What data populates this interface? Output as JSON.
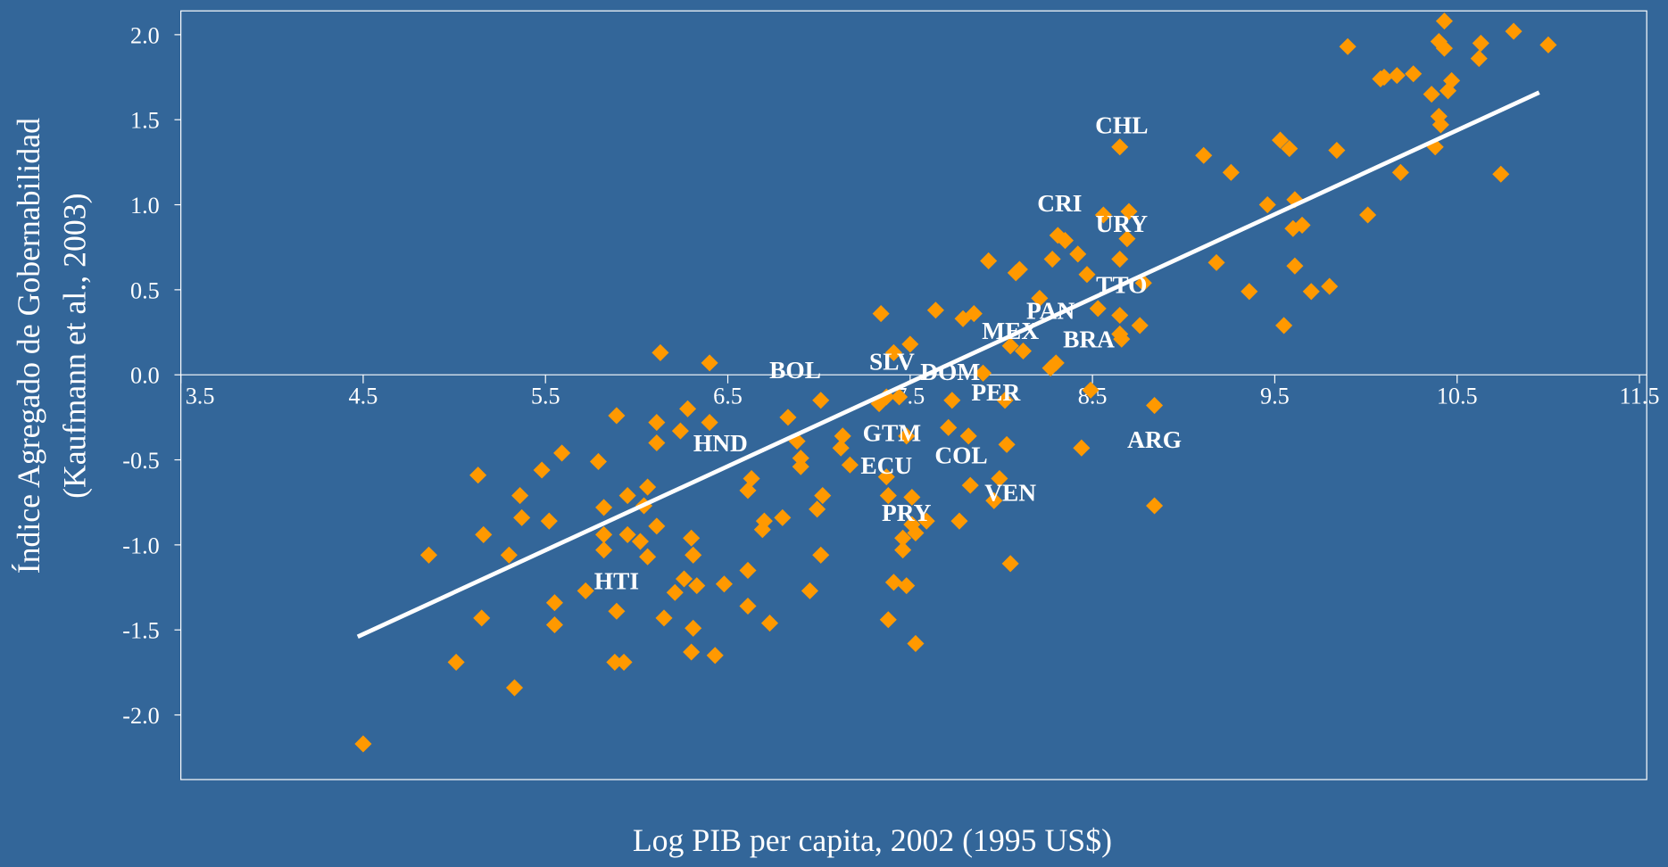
{
  "chart_data": {
    "type": "scatter",
    "xlabel": "Log PIB per capita, 2002 (1995 US$)",
    "ylabel": [
      "Índice Agregado de Gobernabilidad",
      "(Kaufmann et al., 2003)"
    ],
    "xlim": [
      3.5,
      11.54
    ],
    "ylim": [
      -2.38,
      2.14
    ],
    "xticks": [
      3.5,
      4.5,
      5.5,
      6.5,
      7.5,
      8.5,
      9.5,
      10.5,
      11.5
    ],
    "yticks": [
      {
        "value": 2,
        "label": "2.0"
      },
      1.5,
      {
        "value": 1,
        "label": "1.0"
      },
      0.5,
      {
        "value": 0,
        "label": "0.0"
      },
      -0.5,
      {
        "value": -1,
        "label": "-1.0"
      },
      -1.5,
      {
        "value": -2,
        "label": "-2.0"
      }
    ],
    "points": {
      "color": "#ff9900",
      "x": [
        4.5,
        4.86,
        5.01,
        5.13,
        5.15,
        5.16,
        5.3,
        5.33,
        5.36,
        5.37,
        5.48,
        5.52,
        5.55,
        5.55,
        5.59,
        5.72,
        5.79,
        5.82,
        5.82,
        5.82,
        5.89,
        5.89,
        5.88,
        5.93,
        5.95,
        5.95,
        6.02,
        6.04,
        6.06,
        6.06,
        6.11,
        6.11,
        6.11,
        6.13,
        6.15,
        6.21,
        6.24,
        6.26,
        6.28,
        6.3,
        6.31,
        6.31,
        6.3,
        6.33,
        6.4,
        6.4,
        6.43,
        6.48,
        6.61,
        6.63,
        6.61,
        6.61,
        6.69,
        6.7,
        6.73,
        6.8,
        6.83,
        6.88,
        6.9,
        6.9,
        6.95,
        6.99,
        7.01,
        7.02,
        7.01,
        7.12,
        7.13,
        7.17,
        7.34,
        7.33,
        7.37,
        7.37,
        7.38,
        7.38,
        7.41,
        7.41,
        7.44,
        7.46,
        7.46,
        7.48,
        7.48,
        7.5,
        7.51,
        7.51,
        7.53,
        7.53,
        7.59,
        7.64,
        7.71,
        7.73,
        7.77,
        7.79,
        7.82,
        7.85,
        7.83,
        7.9,
        7.93,
        7.96,
        7.99,
        8.02,
        8.03,
        8.05,
        8.05,
        8.08,
        8.1,
        8.12,
        8.21,
        8.27,
        8.28,
        8.3,
        8.31,
        8.35,
        8.42,
        8.44,
        8.47,
        8.49,
        8.53,
        8.56,
        8.65,
        8.65,
        8.65,
        8.65,
        8.66,
        8.69,
        8.7,
        8.76,
        8.78,
        8.84,
        8.84,
        9.11,
        9.18,
        9.26,
        9.36,
        9.46,
        9.53,
        9.55,
        9.58,
        9.6,
        9.61,
        9.61,
        9.65,
        9.7,
        9.8,
        9.84,
        9.9,
        10.01,
        10.08,
        10.1,
        10.17,
        10.19,
        10.26,
        10.36,
        10.38,
        10.4,
        10.4,
        10.41,
        10.43,
        10.45,
        10.47,
        10.43,
        10.62,
        10.63,
        10.74,
        10.81,
        11.0
      ],
      "values": [
        -2.17,
        -1.06,
        -1.69,
        -0.59,
        -1.43,
        -0.94,
        -1.06,
        -1.84,
        -0.71,
        -0.84,
        -0.56,
        -0.86,
        -1.34,
        -1.47,
        -0.46,
        -1.27,
        -0.51,
        -0.78,
        -0.94,
        -1.03,
        -0.24,
        -1.39,
        -1.69,
        -1.69,
        -0.71,
        -0.94,
        -0.98,
        -0.77,
        -0.66,
        -1.07,
        -0.28,
        -0.4,
        -0.89,
        0.13,
        -1.43,
        -1.28,
        -0.33,
        -1.2,
        -0.2,
        -0.96,
        -1.06,
        -1.49,
        -1.63,
        -1.24,
        0.07,
        -0.28,
        -1.65,
        -1.23,
        -0.68,
        -0.61,
        -1.15,
        -1.36,
        -0.91,
        -0.86,
        -1.46,
        -0.84,
        -0.25,
        -0.39,
        -0.49,
        -0.54,
        -1.27,
        -0.79,
        -0.15,
        -0.71,
        -1.06,
        -0.43,
        -0.36,
        -0.53,
        0.36,
        -0.17,
        -0.13,
        -0.6,
        -0.71,
        -1.44,
        0.13,
        -1.22,
        -0.13,
        -0.96,
        -1.03,
        -0.36,
        -1.24,
        0.18,
        -0.72,
        -0.88,
        -0.93,
        -1.58,
        -0.86,
        0.38,
        -0.31,
        -0.15,
        -0.86,
        0.33,
        -0.36,
        0.36,
        -0.65,
        0.01,
        0.67,
        -0.74,
        -0.61,
        -0.15,
        -0.41,
        0.17,
        -1.11,
        0.6,
        0.62,
        0.14,
        0.45,
        0.04,
        0.68,
        0.07,
        0.82,
        0.79,
        0.71,
        -0.43,
        0.59,
        -0.09,
        0.39,
        0.94,
        1.34,
        0.68,
        0.35,
        0.24,
        0.21,
        0.8,
        0.96,
        0.29,
        0.54,
        -0.18,
        -0.77,
        1.29,
        0.66,
        1.19,
        0.49,
        1.0,
        1.38,
        0.29,
        1.33,
        0.86,
        1.03,
        0.64,
        0.88,
        0.49,
        0.52,
        1.32,
        1.93,
        0.94,
        1.74,
        1.75,
        1.76,
        1.19,
        1.77,
        1.65,
        1.34,
        1.52,
        1.96,
        1.47,
        1.92,
        1.67,
        1.73,
        2.08,
        1.86,
        1.95,
        1.18,
        2.02,
        1.94
      ]
    },
    "trend": {
      "color": "#ffffff",
      "x": [
        4.47,
        10.95
      ],
      "values": [
        -1.54,
        1.66
      ]
    },
    "annotations": [
      {
        "text": "CHL",
        "x": 8.66,
        "y": 1.47
      },
      {
        "text": "CRI",
        "x": 8.32,
        "y": 1.01
      },
      {
        "text": "URY",
        "x": 8.66,
        "y": 0.89
      },
      {
        "text": "TTO",
        "x": 8.66,
        "y": 0.53
      },
      {
        "text": "PAN",
        "x": 8.27,
        "y": 0.38
      },
      {
        "text": "MEX",
        "x": 8.05,
        "y": 0.26
      },
      {
        "text": "BRA",
        "x": 8.48,
        "y": 0.21
      },
      {
        "text": "BOL",
        "x": 6.87,
        "y": 0.03
      },
      {
        "text": "SLV",
        "x": 7.4,
        "y": 0.08
      },
      {
        "text": "DOM",
        "x": 7.72,
        "y": 0.02
      },
      {
        "text": "PER",
        "x": 7.97,
        "y": -0.1
      },
      {
        "text": "GTM",
        "x": 7.4,
        "y": -0.34
      },
      {
        "text": "HND",
        "x": 6.46,
        "y": -0.4
      },
      {
        "text": "ECU",
        "x": 7.37,
        "y": -0.53
      },
      {
        "text": "COL",
        "x": 7.78,
        "y": -0.47
      },
      {
        "text": "ARG",
        "x": 8.84,
        "y": -0.38
      },
      {
        "text": "VEN",
        "x": 8.05,
        "y": -0.69
      },
      {
        "text": "PRY",
        "x": 7.48,
        "y": -0.81
      },
      {
        "text": "HTI",
        "x": 5.89,
        "y": -1.21
      }
    ]
  }
}
